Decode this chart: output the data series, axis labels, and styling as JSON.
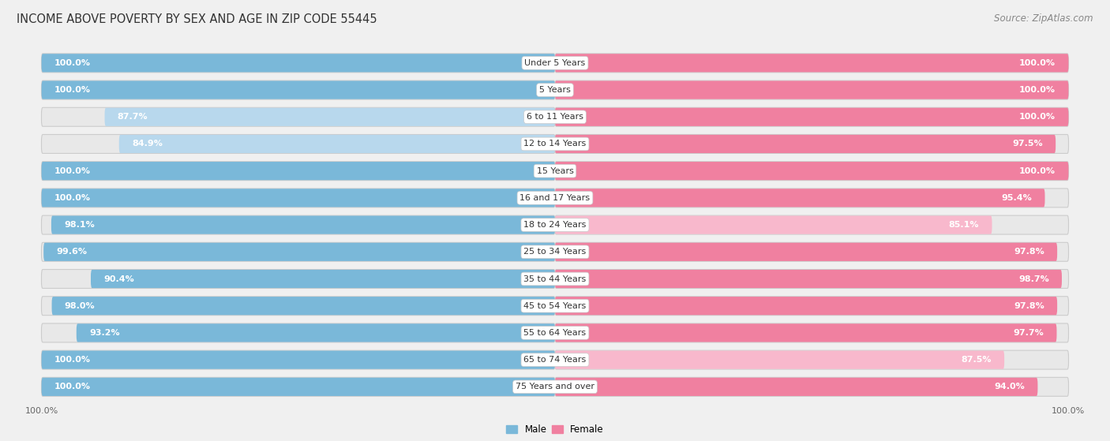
{
  "title": "INCOME ABOVE POVERTY BY SEX AND AGE IN ZIP CODE 55445",
  "source": "Source: ZipAtlas.com",
  "categories": [
    "Under 5 Years",
    "5 Years",
    "6 to 11 Years",
    "12 to 14 Years",
    "15 Years",
    "16 and 17 Years",
    "18 to 24 Years",
    "25 to 34 Years",
    "35 to 44 Years",
    "45 to 54 Years",
    "55 to 64 Years",
    "65 to 74 Years",
    "75 Years and over"
  ],
  "male_values": [
    100.0,
    100.0,
    87.7,
    84.9,
    100.0,
    100.0,
    98.1,
    99.6,
    90.4,
    98.0,
    93.2,
    100.0,
    100.0
  ],
  "female_values": [
    100.0,
    100.0,
    100.0,
    97.5,
    100.0,
    95.4,
    85.1,
    97.8,
    98.7,
    97.8,
    97.7,
    87.5,
    94.0
  ],
  "male_color": "#7ab8d9",
  "female_color": "#f080a0",
  "male_light_color": "#b8d8ed",
  "female_light_color": "#f8b8cc",
  "male_label": "Male",
  "female_label": "Female",
  "bg_color": "#f0f0f0",
  "row_bg_color": "#e0e0e0",
  "title_fontsize": 10.5,
  "source_fontsize": 8.5,
  "label_fontsize": 8,
  "value_fontsize": 8,
  "tick_fontsize": 8,
  "bar_height": 0.68,
  "xlim": [
    0,
    100
  ]
}
